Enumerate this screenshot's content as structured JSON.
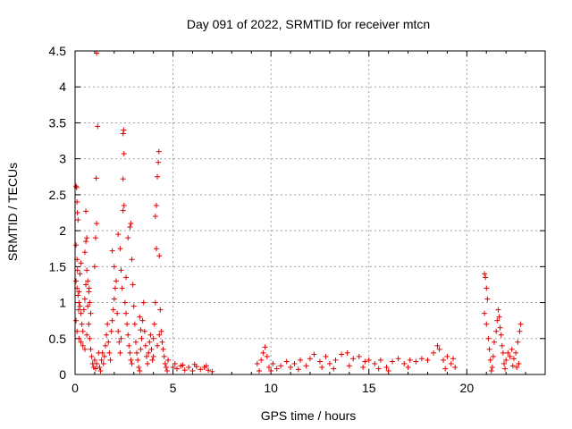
{
  "chart_data": {
    "type": "scatter",
    "title": "Day 091 of 2022, SRMTID for receiver mtcn",
    "xlabel": "GPS time / hours",
    "ylabel": "SRMTID / TECUs",
    "xlim": [
      0,
      24
    ],
    "ylim": [
      0,
      4.5
    ],
    "xticks": [
      0,
      5,
      10,
      15,
      20
    ],
    "xtick_labels": [
      "0",
      "5",
      "10",
      "15",
      "20"
    ],
    "yticks": [
      0,
      0.5,
      1,
      1.5,
      2,
      2.5,
      3,
      3.5,
      4,
      4.5
    ],
    "ytick_labels": [
      "0",
      "0.5",
      "1",
      "1.5",
      "2",
      "2.5",
      "3",
      "3.5",
      "4",
      "4.5"
    ],
    "grid": true,
    "marker": "+",
    "series": [
      {
        "name": "SRMTID",
        "color": "#e00000",
        "points": [
          [
            0.05,
            2.62
          ],
          [
            0.08,
            2.6
          ],
          [
            0.1,
            2.4
          ],
          [
            0.12,
            2.25
          ],
          [
            0.15,
            2.15
          ],
          [
            0.05,
            1.8
          ],
          [
            0.1,
            1.6
          ],
          [
            0.12,
            1.45
          ],
          [
            0.05,
            1.3
          ],
          [
            0.1,
            1.2
          ],
          [
            0.15,
            1.1
          ],
          [
            0.2,
            1.0
          ],
          [
            0.25,
            0.95
          ],
          [
            0.3,
            0.85
          ],
          [
            0.05,
            0.75
          ],
          [
            0.1,
            0.6
          ],
          [
            0.2,
            0.5
          ],
          [
            0.3,
            0.45
          ],
          [
            0.4,
            0.4
          ],
          [
            0.5,
            0.35
          ],
          [
            0.35,
            0.7
          ],
          [
            0.45,
            0.9
          ],
          [
            0.5,
            1.05
          ],
          [
            0.55,
            1.25
          ],
          [
            0.6,
            1.45
          ],
          [
            0.5,
            1.7
          ],
          [
            0.55,
            1.85
          ],
          [
            0.6,
            1.9
          ],
          [
            0.55,
            2.27
          ],
          [
            0.65,
            1.3
          ],
          [
            0.7,
            1.15
          ],
          [
            0.75,
            1.0
          ],
          [
            0.8,
            0.85
          ],
          [
            0.7,
            0.7
          ],
          [
            0.75,
            0.5
          ],
          [
            0.8,
            0.35
          ],
          [
            0.85,
            0.25
          ],
          [
            0.9,
            0.15
          ],
          [
            0.95,
            0.1
          ],
          [
            1.0,
            0.2
          ],
          [
            0.6,
            0.55
          ],
          [
            0.4,
            0.6
          ],
          [
            0.3,
            1.55
          ],
          [
            0.25,
            1.4
          ],
          [
            0.2,
            1.15
          ],
          [
            0.18,
            0.9
          ],
          [
            0.65,
            0.95
          ],
          [
            0.72,
            1.2
          ],
          [
            1.05,
            0.08
          ],
          [
            1.1,
            0.15
          ],
          [
            1.0,
            1.5
          ],
          [
            1.05,
            1.9
          ],
          [
            1.1,
            2.1
          ],
          [
            1.08,
            2.73
          ],
          [
            1.15,
            3.45
          ],
          [
            1.1,
            4.47
          ],
          [
            1.2,
            0.3
          ],
          [
            1.25,
            0.1
          ],
          [
            1.3,
            0.05
          ],
          [
            1.35,
            0.2
          ],
          [
            1.4,
            0.3
          ],
          [
            1.45,
            0.15
          ],
          [
            1.5,
            0.25
          ],
          [
            1.55,
            0.4
          ],
          [
            1.6,
            0.55
          ],
          [
            1.65,
            0.7
          ],
          [
            1.7,
            0.45
          ],
          [
            1.75,
            0.3
          ],
          [
            1.8,
            0.2
          ],
          [
            1.85,
            0.6
          ],
          [
            1.9,
            0.75
          ],
          [
            1.95,
            0.9
          ],
          [
            2.0,
            1.05
          ],
          [
            2.05,
            1.2
          ],
          [
            2.0,
            1.5
          ],
          [
            2.1,
            1.3
          ],
          [
            1.9,
            1.72
          ],
          [
            2.15,
            0.85
          ],
          [
            2.2,
            0.6
          ],
          [
            2.25,
            0.45
          ],
          [
            2.3,
            0.3
          ],
          [
            2.35,
            0.5
          ],
          [
            2.2,
            1.95
          ],
          [
            2.3,
            1.75
          ],
          [
            2.35,
            1.45
          ],
          [
            2.4,
            1.2
          ],
          [
            2.45,
            2.28
          ],
          [
            2.5,
            2.35
          ],
          [
            2.45,
            2.72
          ],
          [
            2.5,
            3.07
          ],
          [
            2.45,
            3.35
          ],
          [
            2.48,
            3.4
          ],
          [
            2.55,
            1.0
          ],
          [
            2.6,
            0.85
          ],
          [
            2.65,
            0.7
          ],
          [
            2.7,
            0.55
          ],
          [
            2.75,
            0.4
          ],
          [
            2.8,
            0.3
          ],
          [
            2.85,
            0.2
          ],
          [
            2.9,
            0.15
          ],
          [
            2.6,
            1.35
          ],
          [
            2.7,
            1.9
          ],
          [
            2.8,
            2.05
          ],
          [
            2.85,
            2.1
          ],
          [
            2.9,
            1.6
          ],
          [
            2.95,
            1.25
          ],
          [
            3.0,
            0.95
          ],
          [
            3.05,
            0.7
          ],
          [
            3.1,
            0.45
          ],
          [
            3.15,
            0.3
          ],
          [
            3.2,
            0.2
          ],
          [
            3.25,
            0.1
          ],
          [
            3.3,
            0.05
          ],
          [
            3.35,
            0.35
          ],
          [
            3.4,
            0.5
          ],
          [
            3.45,
            0.75
          ],
          [
            3.5,
            1.0
          ],
          [
            3.55,
            0.6
          ],
          [
            3.6,
            0.4
          ],
          [
            3.65,
            0.25
          ],
          [
            3.7,
            0.15
          ],
          [
            3.75,
            0.3
          ],
          [
            3.8,
            0.45
          ],
          [
            3.85,
            0.55
          ],
          [
            3.9,
            0.35
          ],
          [
            3.95,
            0.2
          ],
          [
            4.0,
            0.5
          ],
          [
            4.05,
            0.7
          ],
          [
            4.1,
            1.0
          ],
          [
            4.15,
            1.75
          ],
          [
            4.1,
            2.2
          ],
          [
            4.15,
            2.35
          ],
          [
            4.2,
            2.75
          ],
          [
            4.25,
            2.95
          ],
          [
            4.28,
            3.1
          ],
          [
            4.3,
            1.65
          ],
          [
            4.35,
            0.9
          ],
          [
            4.4,
            0.6
          ],
          [
            4.45,
            0.45
          ],
          [
            4.5,
            0.35
          ],
          [
            4.55,
            0.25
          ],
          [
            4.6,
            0.15
          ],
          [
            4.65,
            0.1
          ],
          [
            4.7,
            0.05
          ],
          [
            4.75,
            0.2
          ],
          [
            4.3,
            0.55
          ],
          [
            4.2,
            0.4
          ],
          [
            4.0,
            0.25
          ],
          [
            3.3,
            0.8
          ],
          [
            3.35,
            0.62
          ],
          [
            5.0,
            0.1
          ],
          [
            5.2,
            0.08
          ],
          [
            5.4,
            0.12
          ],
          [
            5.6,
            0.06
          ],
          [
            5.8,
            0.1
          ],
          [
            6.0,
            0.05
          ],
          [
            6.2,
            0.11
          ],
          [
            6.4,
            0.07
          ],
          [
            6.6,
            0.1
          ],
          [
            6.8,
            0.06
          ],
          [
            7.0,
            0.04
          ],
          [
            5.1,
            0.15
          ],
          [
            5.5,
            0.13
          ],
          [
            6.1,
            0.14
          ],
          [
            6.7,
            0.12
          ],
          [
            9.3,
            0.15
          ],
          [
            9.5,
            0.2
          ],
          [
            9.6,
            0.3
          ],
          [
            9.7,
            0.38
          ],
          [
            9.8,
            0.25
          ],
          [
            9.9,
            0.1
          ],
          [
            10.1,
            0.15
          ],
          [
            10.3,
            0.08
          ],
          [
            10.5,
            0.12
          ],
          [
            10.8,
            0.18
          ],
          [
            11.0,
            0.1
          ],
          [
            11.2,
            0.15
          ],
          [
            11.5,
            0.2
          ],
          [
            11.8,
            0.12
          ],
          [
            12.0,
            0.22
          ],
          [
            12.2,
            0.28
          ],
          [
            12.5,
            0.18
          ],
          [
            12.8,
            0.25
          ],
          [
            13.0,
            0.15
          ],
          [
            13.3,
            0.2
          ],
          [
            13.6,
            0.28
          ],
          [
            13.9,
            0.3
          ],
          [
            14.2,
            0.22
          ],
          [
            14.5,
            0.25
          ],
          [
            14.8,
            0.18
          ],
          [
            15.0,
            0.2
          ],
          [
            15.3,
            0.15
          ],
          [
            15.6,
            0.2
          ],
          [
            15.9,
            0.1
          ],
          [
            16.2,
            0.18
          ],
          [
            16.5,
            0.22
          ],
          [
            16.8,
            0.15
          ],
          [
            17.1,
            0.2
          ],
          [
            17.4,
            0.18
          ],
          [
            17.7,
            0.22
          ],
          [
            18.0,
            0.2
          ],
          [
            18.3,
            0.3
          ],
          [
            18.5,
            0.4
          ],
          [
            18.6,
            0.35
          ],
          [
            18.8,
            0.2
          ],
          [
            19.0,
            0.25
          ],
          [
            19.2,
            0.15
          ],
          [
            19.4,
            0.1
          ],
          [
            10.0,
            0.05
          ],
          [
            11.4,
            0.07
          ],
          [
            12.6,
            0.1
          ],
          [
            14.0,
            0.12
          ],
          [
            15.5,
            0.08
          ],
          [
            16.0,
            0.05
          ],
          [
            17.0,
            0.1
          ],
          [
            18.9,
            0.08
          ],
          [
            19.3,
            0.22
          ],
          [
            13.2,
            0.08
          ],
          [
            14.7,
            0.1
          ],
          [
            9.4,
            0.05
          ],
          [
            20.9,
            1.4
          ],
          [
            20.95,
            1.35
          ],
          [
            21.0,
            1.2
          ],
          [
            21.05,
            1.05
          ],
          [
            20.9,
            0.85
          ],
          [
            21.0,
            0.7
          ],
          [
            21.1,
            0.5
          ],
          [
            21.15,
            0.35
          ],
          [
            21.2,
            0.2
          ],
          [
            21.3,
            0.1
          ],
          [
            21.35,
            0.25
          ],
          [
            21.4,
            0.45
          ],
          [
            21.5,
            0.6
          ],
          [
            21.55,
            0.75
          ],
          [
            21.6,
            0.9
          ],
          [
            21.65,
            0.8
          ],
          [
            21.7,
            0.65
          ],
          [
            21.75,
            0.55
          ],
          [
            21.8,
            0.4
          ],
          [
            21.85,
            0.3
          ],
          [
            21.9,
            0.15
          ],
          [
            21.95,
            0.08
          ],
          [
            22.0,
            0.2
          ],
          [
            22.1,
            0.3
          ],
          [
            22.2,
            0.25
          ],
          [
            22.3,
            0.35
          ],
          [
            22.4,
            0.22
          ],
          [
            22.5,
            0.3
          ],
          [
            22.6,
            0.45
          ],
          [
            22.7,
            0.6
          ],
          [
            22.75,
            0.7
          ],
          [
            22.65,
            0.15
          ],
          [
            22.55,
            0.1
          ],
          [
            22.35,
            0.12
          ],
          [
            21.25,
            0.05
          ]
        ]
      }
    ]
  }
}
